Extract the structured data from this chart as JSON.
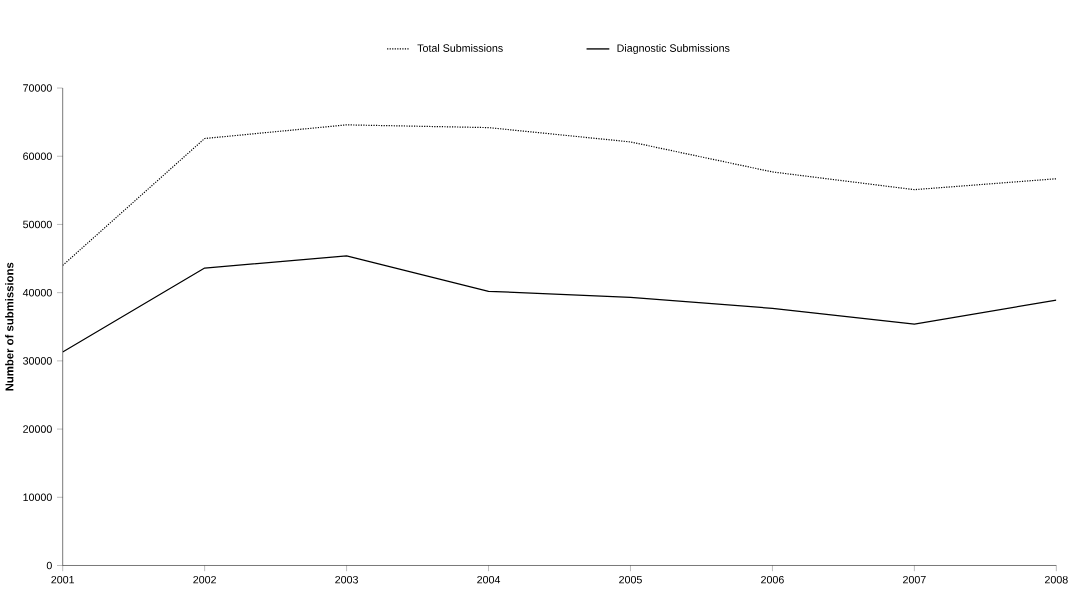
{
  "chart_data": {
    "type": "line",
    "ylabel": "Number of submissions",
    "x": [
      2001,
      2002,
      2003,
      2004,
      2005,
      2006,
      2007,
      2008
    ],
    "series": [
      {
        "name": "Total Submissions",
        "color": "#000000",
        "line_style": "dotted",
        "values": [
          44000,
          62600,
          64600,
          64200,
          62100,
          57700,
          55100,
          56700
        ]
      },
      {
        "name": "Diagnostic Submissions",
        "color": "#000000",
        "line_style": "solid",
        "values": [
          31300,
          43600,
          45400,
          40200,
          39300,
          37700,
          35400,
          38900
        ]
      }
    ],
    "xlim": [
      2001,
      2008
    ],
    "xticks": [
      2001,
      2002,
      2003,
      2004,
      2005,
      2006,
      2007,
      2008
    ],
    "ylim": [
      0,
      70000
    ],
    "yticks": [
      0,
      10000,
      20000,
      30000,
      40000,
      50000,
      60000,
      70000
    ],
    "grid": false,
    "legend": "top",
    "marker": "none"
  }
}
